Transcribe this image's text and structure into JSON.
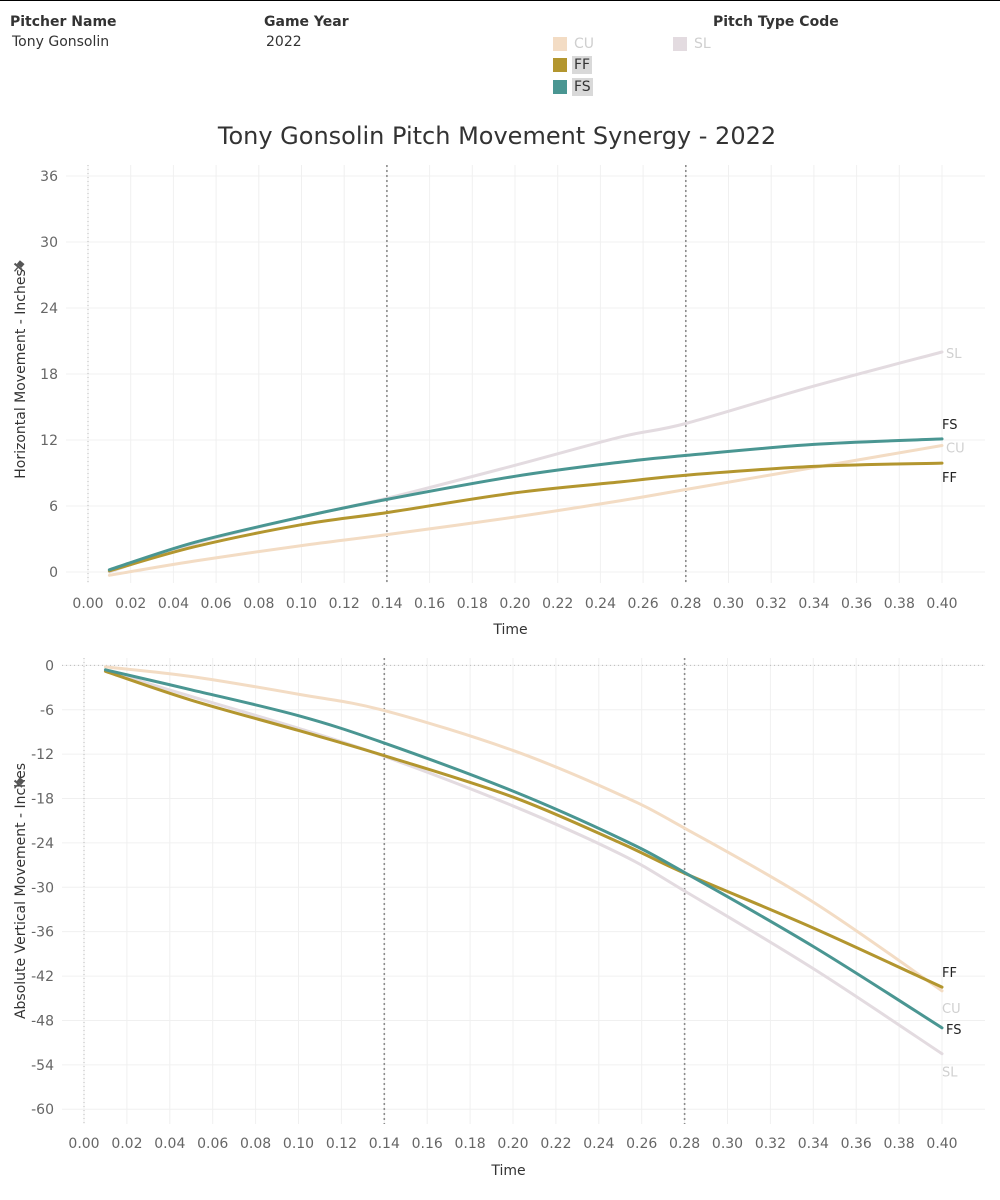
{
  "filters": {
    "pitcher": {
      "title": "Pitcher Name",
      "value": "Tony Gonsolin"
    },
    "year": {
      "title": "Game Year",
      "value": "2022"
    }
  },
  "legend": {
    "title": "Pitch Type Code",
    "items": [
      {
        "code": "CU",
        "color": "#f3dcc4",
        "selected": false
      },
      {
        "code": "FF",
        "color": "#b3962f",
        "selected": true
      },
      {
        "code": "FS",
        "color": "#4a9692",
        "selected": true
      },
      {
        "code": "SL",
        "color": "#e3dbe0",
        "selected": false
      }
    ]
  },
  "title": "Tony Gonsolin Pitch Movement Synergy - 2022",
  "chart_data": [
    {
      "type": "line",
      "title": "Tony Gonsolin Pitch Movement Synergy - 2022",
      "xlabel": "Time",
      "ylabel": "Horizontal Movement - Inches",
      "xlim": [
        0.0,
        0.4
      ],
      "ylim": [
        -1,
        37
      ],
      "x_ticks": [
        0.0,
        0.02,
        0.04,
        0.06,
        0.08,
        0.1,
        0.12,
        0.14,
        0.16,
        0.18,
        0.2,
        0.22,
        0.24,
        0.26,
        0.28,
        0.3,
        0.32,
        0.34,
        0.36,
        0.38,
        0.4
      ],
      "y_ticks": [
        0,
        6,
        12,
        18,
        24,
        30,
        36
      ],
      "reference_lines_x": [
        0.14,
        0.28
      ],
      "grid": true,
      "x": [
        0.01,
        0.05,
        0.1,
        0.14,
        0.2,
        0.25,
        0.28,
        0.34,
        0.4
      ],
      "series": [
        {
          "name": "CU",
          "color": "#f3dcc4",
          "highlighted": false,
          "values": [
            -0.3,
            1.0,
            2.4,
            3.4,
            5.0,
            6.5,
            7.5,
            9.5,
            11.5
          ]
        },
        {
          "name": "FF",
          "color": "#b3962f",
          "highlighted": true,
          "values": [
            0.1,
            2.3,
            4.3,
            5.4,
            7.2,
            8.2,
            8.8,
            9.6,
            9.9
          ]
        },
        {
          "name": "FS",
          "color": "#4a9692",
          "highlighted": true,
          "values": [
            0.2,
            2.7,
            5.0,
            6.6,
            8.7,
            10.0,
            10.6,
            11.6,
            12.1
          ]
        },
        {
          "name": "SL",
          "color": "#e3dbe0",
          "highlighted": false,
          "values": [
            0.0,
            2.6,
            5.0,
            6.7,
            9.7,
            12.3,
            13.5,
            16.9,
            20.0
          ]
        }
      ]
    },
    {
      "type": "line",
      "xlabel": "Time",
      "ylabel": "Absolute Vertical Movement - Inches",
      "xlim": [
        0.0,
        0.4
      ],
      "ylim": [
        -62,
        1
      ],
      "x_ticks": [
        0.0,
        0.02,
        0.04,
        0.06,
        0.08,
        0.1,
        0.12,
        0.14,
        0.16,
        0.18,
        0.2,
        0.22,
        0.24,
        0.26,
        0.28,
        0.3,
        0.32,
        0.34,
        0.36,
        0.38,
        0.4
      ],
      "y_ticks": [
        0,
        -6,
        -12,
        -18,
        -24,
        -30,
        -36,
        -42,
        -48,
        -54,
        -60
      ],
      "reference_lines_x": [
        0.14,
        0.28
      ],
      "grid": true,
      "x": [
        0.01,
        0.05,
        0.1,
        0.14,
        0.2,
        0.25,
        0.28,
        0.34,
        0.4
      ],
      "series": [
        {
          "name": "CU",
          "color": "#f3dcc4",
          "highlighted": false,
          "values": [
            -0.2,
            -1.5,
            -3.9,
            -6.1,
            -11.5,
            -17.5,
            -22.0,
            -32.0,
            -44.0
          ]
        },
        {
          "name": "FF",
          "color": "#b3962f",
          "highlighted": true,
          "values": [
            -0.8,
            -4.7,
            -8.8,
            -12.2,
            -17.8,
            -24.0,
            -28.1,
            -35.5,
            -43.5
          ]
        },
        {
          "name": "FS",
          "color": "#4a9692",
          "highlighted": true,
          "values": [
            -0.6,
            -3.3,
            -6.8,
            -10.5,
            -17.0,
            -23.4,
            -28.0,
            -38.0,
            -49.0
          ]
        },
        {
          "name": "SL",
          "color": "#e3dbe0",
          "highlighted": false,
          "values": [
            -0.7,
            -4.2,
            -8.5,
            -12.3,
            -19.0,
            -25.5,
            -30.5,
            -41.0,
            -52.5
          ]
        }
      ]
    }
  ]
}
